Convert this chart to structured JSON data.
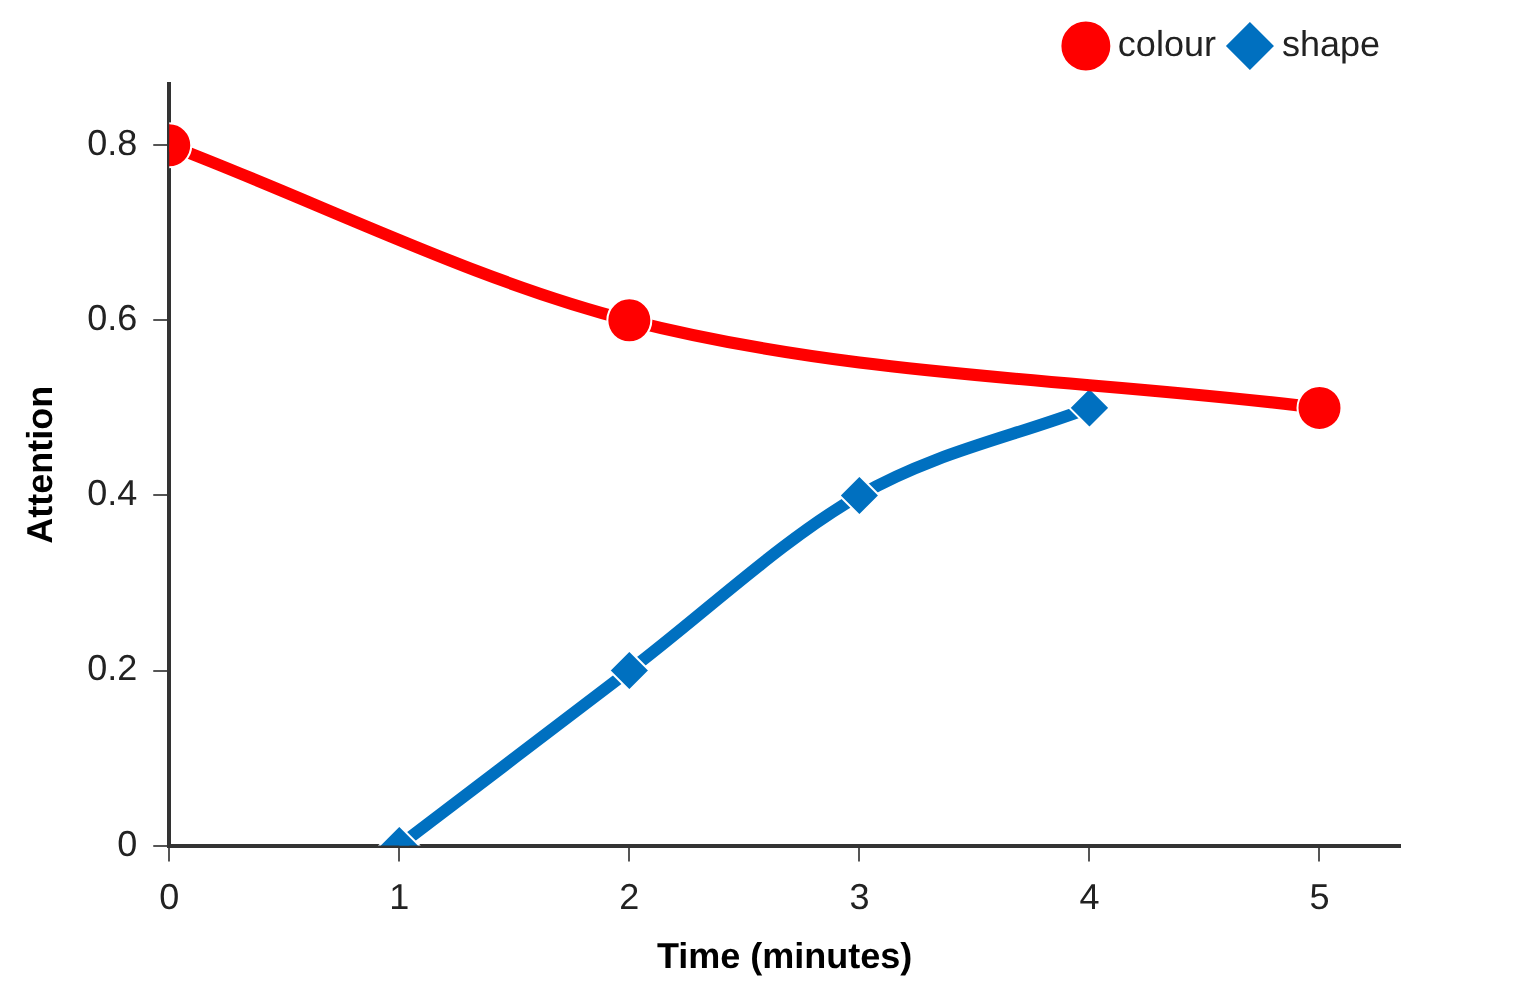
{
  "chart_data": {
    "type": "line",
    "xlabel": "Time (minutes)",
    "ylabel": "Attention",
    "xlim": [
      0,
      5.35
    ],
    "xticks": [
      0,
      1,
      2,
      3,
      4,
      5
    ],
    "ylim": [
      0,
      0.87
    ],
    "yticks": [
      0,
      0.2,
      0.4,
      0.6,
      0.8
    ],
    "grid": false,
    "legend": "top right",
    "series": [
      {
        "name": "colour",
        "color": "#ff0000",
        "marker": "circle",
        "x": [
          0,
          2,
          5
        ],
        "values": [
          0.8,
          0.6,
          0.5
        ]
      },
      {
        "name": "shape",
        "color": "#0070c0",
        "marker": "diamond",
        "x": [
          1,
          2,
          3,
          4
        ],
        "values": [
          0,
          0.2,
          0.4,
          0.5
        ]
      }
    ]
  }
}
